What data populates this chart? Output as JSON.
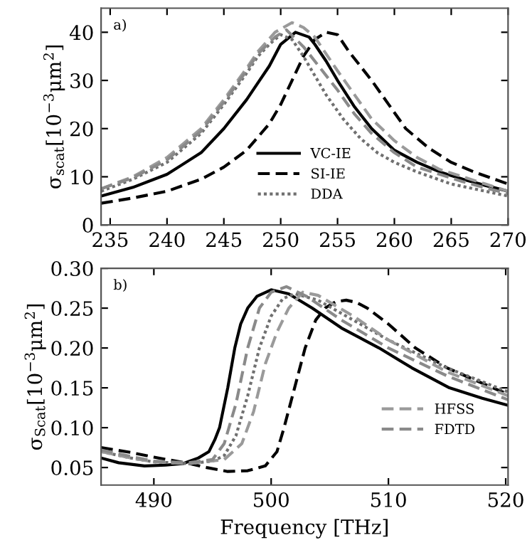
{
  "chart_data": [
    {
      "type": "line",
      "annotations": [
        "a)"
      ],
      "ylabel": "σ$_{scat}$[10$^{−3}$μm$^{2}$]",
      "xlim": [
        234.2,
        270
      ],
      "ylim": [
        0,
        45
      ],
      "xticks": [
        235,
        240,
        245,
        250,
        255,
        260,
        265,
        270
      ],
      "yticks": [
        0,
        10,
        20,
        30,
        40
      ],
      "grid": false,
      "legend": "bottom",
      "series": [
        {
          "name": "VC-IE",
          "color": "#000000",
          "line_style": "solid",
          "x": [
            234.2,
            237,
            240,
            243,
            245,
            247,
            248,
            249,
            250,
            251.3,
            252.5,
            253,
            254,
            255,
            256.5,
            258,
            260,
            262,
            264,
            266,
            268,
            270
          ],
          "values": [
            6,
            7.8,
            10.5,
            15,
            20,
            26,
            29.5,
            33,
            37.5,
            40,
            39,
            37.5,
            34,
            30,
            24.5,
            20,
            15.5,
            13,
            11,
            9.5,
            8.2,
            7
          ]
        },
        {
          "name": "SI-IE",
          "color": "#000000",
          "line_style": "dashed",
          "x": [
            234.2,
            237,
            240,
            243,
            245,
            247,
            249,
            250,
            251,
            252,
            253,
            254,
            255,
            256,
            257,
            258,
            259.5,
            261,
            263,
            265,
            267,
            270
          ],
          "values": [
            4.5,
            5.6,
            7,
            9.5,
            12,
            15.5,
            21,
            25,
            30,
            35,
            38.5,
            40,
            39.5,
            36,
            33,
            30,
            25,
            20,
            16,
            13,
            11,
            8.5
          ]
        },
        {
          "name": "DDA",
          "color": "#707070",
          "line_style": "dotted",
          "x": [
            234.2,
            237,
            240,
            243,
            245,
            247,
            248,
            249,
            250,
            251,
            252,
            253,
            254,
            255.5,
            257,
            258.5,
            260,
            262,
            265,
            267,
            270
          ],
          "values": [
            7,
            9.5,
            13,
            19,
            25,
            31.5,
            35,
            37.5,
            39.5,
            38.5,
            35,
            31,
            27,
            22,
            18,
            15,
            13,
            11,
            8.5,
            7.5,
            6
          ]
        },
        {
          "color": "#9a9a9a",
          "line_style": "dashed",
          "x": [
            234.2,
            237,
            240,
            243,
            245,
            247,
            248,
            249.5,
            251,
            252,
            253,
            254,
            255,
            256.5,
            258,
            260,
            262,
            264,
            266,
            268,
            270
          ],
          "values": [
            7.5,
            10,
            14,
            20,
            26,
            32.5,
            36,
            40,
            42,
            41,
            39,
            35.5,
            32,
            27,
            22,
            17.5,
            14,
            11.5,
            10,
            8.5,
            7
          ]
        },
        {
          "color": "#8a8a8a",
          "line_style": "dashed",
          "x": [
            234.2,
            237,
            240,
            243,
            245,
            247,
            248,
            249.5,
            250.5,
            252,
            253.5,
            255,
            256.5,
            258,
            260,
            262,
            264,
            266,
            268,
            270
          ],
          "values": [
            7.5,
            9.8,
            13.5,
            19.5,
            25.5,
            32,
            35.5,
            39,
            40.5,
            37,
            32.5,
            28,
            23,
            19,
            15,
            12,
            10.5,
            9,
            7.7,
            6.5
          ]
        }
      ]
    },
    {
      "type": "line",
      "annotations": [
        "b)"
      ],
      "xlabel": "Frequency [THz]",
      "ylabel": "σ$_{Scat}$[10$^{−3}$μm$^{2}$]",
      "xlim": [
        485.5,
        520.2
      ],
      "ylim": [
        0.028,
        0.3
      ],
      "xticks": [
        490,
        500,
        510,
        520
      ],
      "yticks": [
        {
          "value": 0.05,
          "label": "0.05"
        },
        {
          "value": 0.1,
          "label": "0.10"
        },
        {
          "value": 0.15,
          "label": "0.15"
        },
        {
          "value": 0.2,
          "label": "0.20"
        },
        {
          "value": 0.25,
          "label": "0.25"
        },
        {
          "value": 0.3,
          "label": "0.30"
        }
      ],
      "grid": false,
      "legend": "right",
      "series": [
        {
          "color": "#000000",
          "line_style": "solid",
          "x": [
            485.5,
            487,
            489.2,
            491,
            492.5,
            493.8,
            494.7,
            495.2,
            495.6,
            496.3,
            496.9,
            497.4,
            498,
            498.8,
            500,
            501.5,
            503.5,
            506,
            509.2,
            512,
            515.2,
            518,
            520.2
          ],
          "values": [
            0.062,
            0.056,
            0.052,
            0.053,
            0.055,
            0.062,
            0.07,
            0.085,
            0.1,
            0.15,
            0.2,
            0.23,
            0.25,
            0.265,
            0.273,
            0.268,
            0.25,
            0.225,
            0.2,
            0.175,
            0.15,
            0.137,
            0.128
          ]
        },
        {
          "color": "#000000",
          "line_style": "dashed",
          "x": [
            485.5,
            488,
            490,
            493,
            494.5,
            496.3,
            498,
            499.5,
            500.5,
            501.1,
            502,
            502.9,
            503.8,
            504.6,
            505.5,
            506.4,
            507.3,
            508.2,
            510,
            512.3,
            515,
            518.9,
            520.2
          ],
          "values": [
            0.075,
            0.069,
            0.063,
            0.055,
            0.05,
            0.045,
            0.046,
            0.052,
            0.07,
            0.1,
            0.15,
            0.2,
            0.235,
            0.25,
            0.258,
            0.26,
            0.257,
            0.25,
            0.23,
            0.2,
            0.175,
            0.15,
            0.142
          ]
        },
        {
          "color": "#707070",
          "line_style": "dotted",
          "x": [
            485.5,
            488,
            490,
            493,
            495,
            496,
            497,
            498,
            499,
            500,
            501,
            502,
            504,
            507,
            510,
            515,
            520.2
          ],
          "values": [
            0.07,
            0.062,
            0.057,
            0.055,
            0.058,
            0.065,
            0.09,
            0.14,
            0.2,
            0.24,
            0.262,
            0.268,
            0.26,
            0.235,
            0.21,
            0.175,
            0.145
          ]
        },
        {
          "name": "HFSS",
          "color": "#9a9a9a",
          "line_style": "dashed",
          "x": [
            485.5,
            488,
            490,
            493,
            496,
            497.5,
            498.5,
            499.5,
            500.5,
            501.5,
            502.7,
            504,
            507,
            510,
            515,
            520.2
          ],
          "values": [
            0.07,
            0.062,
            0.057,
            0.055,
            0.06,
            0.08,
            0.12,
            0.18,
            0.22,
            0.25,
            0.27,
            0.266,
            0.24,
            0.21,
            0.17,
            0.14
          ]
        },
        {
          "name": "FDTD",
          "color": "#8a8a8a",
          "line_style": "dashed",
          "x": [
            485.5,
            488,
            490,
            493,
            495,
            496,
            497,
            498,
            499,
            500,
            501.3,
            503,
            506,
            510,
            515,
            520.2
          ],
          "values": [
            0.072,
            0.064,
            0.058,
            0.056,
            0.06,
            0.08,
            0.13,
            0.2,
            0.25,
            0.27,
            0.277,
            0.265,
            0.235,
            0.2,
            0.165,
            0.135
          ]
        }
      ]
    }
  ]
}
